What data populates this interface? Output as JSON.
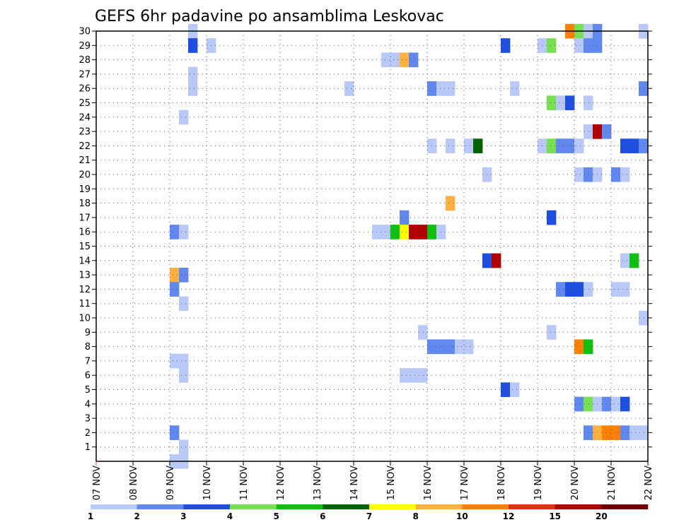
{
  "chart_data": {
    "type": "heatmap",
    "title": "GEFS 6hr padavine po ansamblima Leskovac",
    "x_tick_labels": [
      "07 NOV",
      "08 NOV",
      "09 NOV",
      "10 NOV",
      "11 NOV",
      "12 NOV",
      "13 NOV",
      "14 NOV",
      "15 NOV",
      "16 NOV",
      "17 NOV",
      "18 NOV",
      "19 NOV",
      "20 NOV",
      "21 NOV",
      "22 NOV"
    ],
    "y_tick_labels": [
      "1",
      "2",
      "3",
      "4",
      "5",
      "6",
      "7",
      "8",
      "9",
      "10",
      "11",
      "12",
      "13",
      "14",
      "15",
      "16",
      "17",
      "18",
      "19",
      "20",
      "21",
      "22",
      "23",
      "24",
      "25",
      "26",
      "27",
      "28",
      "29",
      "30"
    ],
    "y_range": [
      0,
      30
    ],
    "steps_per_day": 4,
    "grid": true,
    "legend": {
      "position": "bottom",
      "labels": [
        "1",
        "2",
        "3",
        "4",
        "5",
        "6",
        "7",
        "8",
        "10",
        "12",
        "15",
        "20"
      ],
      "colors": [
        "#b8c8f8",
        "#6088ee",
        "#1f4fe0",
        "#78e050",
        "#10c010",
        "#006400",
        "#ffff00",
        "#ffb040",
        "#ff8000",
        "#e03010",
        "#b00000",
        "#700000"
      ]
    },
    "cells": [
      {
        "member": 30,
        "step": 10,
        "value": 1.5
      },
      {
        "member": 30,
        "step": 51,
        "value": 11
      },
      {
        "member": 30,
        "step": 52,
        "value": 4.5
      },
      {
        "member": 30,
        "step": 53,
        "value": 1.5
      },
      {
        "member": 30,
        "step": 54,
        "value": 2.5
      },
      {
        "member": 30,
        "step": 59,
        "value": 1.5
      },
      {
        "member": 29,
        "step": 10,
        "value": 3.5
      },
      {
        "member": 29,
        "step": 12,
        "value": 1.5
      },
      {
        "member": 29,
        "step": 44,
        "value": 3.5
      },
      {
        "member": 29,
        "step": 48,
        "value": 1.5
      },
      {
        "member": 29,
        "step": 49,
        "value": 4.5
      },
      {
        "member": 29,
        "step": 52,
        "value": 1.5
      },
      {
        "member": 29,
        "step": 53,
        "value": 2.5
      },
      {
        "member": 29,
        "step": 54,
        "value": 2.5
      },
      {
        "member": 28,
        "step": 31,
        "value": 1.5
      },
      {
        "member": 28,
        "step": 32,
        "value": 1.5
      },
      {
        "member": 28,
        "step": 33,
        "value": 9
      },
      {
        "member": 28,
        "step": 34,
        "value": 2.5
      },
      {
        "member": 27,
        "step": 10,
        "value": 1.5
      },
      {
        "member": 26,
        "step": 10,
        "value": 1.5
      },
      {
        "member": 26,
        "step": 27,
        "value": 1.5
      },
      {
        "member": 26,
        "step": 36,
        "value": 2.5
      },
      {
        "member": 26,
        "step": 37,
        "value": 1.5
      },
      {
        "member": 26,
        "step": 38,
        "value": 1.5
      },
      {
        "member": 26,
        "step": 45,
        "value": 1.5
      },
      {
        "member": 26,
        "step": 59,
        "value": 2.5
      },
      {
        "member": 25,
        "step": 49,
        "value": 4.5
      },
      {
        "member": 25,
        "step": 50,
        "value": 1.5
      },
      {
        "member": 25,
        "step": 51,
        "value": 3.5
      },
      {
        "member": 25,
        "step": 53,
        "value": 1.5
      },
      {
        "member": 24,
        "step": 9,
        "value": 1.5
      },
      {
        "member": 23,
        "step": 53,
        "value": 1.5
      },
      {
        "member": 23,
        "step": 54,
        "value": 17
      },
      {
        "member": 23,
        "step": 55,
        "value": 2.5
      },
      {
        "member": 22,
        "step": 36,
        "value": 1.5
      },
      {
        "member": 22,
        "step": 38,
        "value": 1.5
      },
      {
        "member": 22,
        "step": 40,
        "value": 1.5
      },
      {
        "member": 22,
        "step": 41,
        "value": 6.5
      },
      {
        "member": 22,
        "step": 48,
        "value": 1.5
      },
      {
        "member": 22,
        "step": 49,
        "value": 4.5
      },
      {
        "member": 22,
        "step": 50,
        "value": 2.5
      },
      {
        "member": 22,
        "step": 51,
        "value": 2.5
      },
      {
        "member": 22,
        "step": 52,
        "value": 1.5
      },
      {
        "member": 22,
        "step": 57,
        "value": 3.5
      },
      {
        "member": 22,
        "step": 58,
        "value": 3.5
      },
      {
        "member": 22,
        "step": 59,
        "value": 2.5
      },
      {
        "member": 20,
        "step": 42,
        "value": 1.5
      },
      {
        "member": 20,
        "step": 52,
        "value": 1.5
      },
      {
        "member": 20,
        "step": 53,
        "value": 2.5
      },
      {
        "member": 20,
        "step": 54,
        "value": 1.5
      },
      {
        "member": 20,
        "step": 56,
        "value": 2.5
      },
      {
        "member": 20,
        "step": 57,
        "value": 1.5
      },
      {
        "member": 18,
        "step": 38,
        "value": 9
      },
      {
        "member": 17,
        "step": 33,
        "value": 2.5
      },
      {
        "member": 17,
        "step": 49,
        "value": 3.5
      },
      {
        "member": 16,
        "step": 8,
        "value": 2.5
      },
      {
        "member": 16,
        "step": 9,
        "value": 1.5
      },
      {
        "member": 16,
        "step": 30,
        "value": 1.5
      },
      {
        "member": 16,
        "step": 31,
        "value": 1.5
      },
      {
        "member": 16,
        "step": 32,
        "value": 5.5
      },
      {
        "member": 16,
        "step": 33,
        "value": 7.5
      },
      {
        "member": 16,
        "step": 34,
        "value": 17
      },
      {
        "member": 16,
        "step": 35,
        "value": 17
      },
      {
        "member": 16,
        "step": 36,
        "value": 5.5
      },
      {
        "member": 16,
        "step": 37,
        "value": 1.5
      },
      {
        "member": 14,
        "step": 42,
        "value": 3.5
      },
      {
        "member": 14,
        "step": 43,
        "value": 17
      },
      {
        "member": 14,
        "step": 57,
        "value": 1.5
      },
      {
        "member": 14,
        "step": 58,
        "value": 5.5
      },
      {
        "member": 13,
        "step": 8,
        "value": 9
      },
      {
        "member": 13,
        "step": 9,
        "value": 2.5
      },
      {
        "member": 12,
        "step": 8,
        "value": 2.5
      },
      {
        "member": 12,
        "step": 50,
        "value": 2.5
      },
      {
        "member": 12,
        "step": 51,
        "value": 3.5
      },
      {
        "member": 12,
        "step": 52,
        "value": 3.5
      },
      {
        "member": 12,
        "step": 53,
        "value": 1.5
      },
      {
        "member": 12,
        "step": 56,
        "value": 1.5
      },
      {
        "member": 12,
        "step": 57,
        "value": 1.5
      },
      {
        "member": 11,
        "step": 9,
        "value": 1.5
      },
      {
        "member": 10,
        "step": 59,
        "value": 1.5
      },
      {
        "member": 9,
        "step": 35,
        "value": 1.5
      },
      {
        "member": 9,
        "step": 49,
        "value": 1.5
      },
      {
        "member": 8,
        "step": 36,
        "value": 2.5
      },
      {
        "member": 8,
        "step": 37,
        "value": 2.5
      },
      {
        "member": 8,
        "step": 38,
        "value": 2.5
      },
      {
        "member": 8,
        "step": 39,
        "value": 1.5
      },
      {
        "member": 8,
        "step": 40,
        "value": 1.5
      },
      {
        "member": 8,
        "step": 52,
        "value": 11
      },
      {
        "member": 8,
        "step": 53,
        "value": 5.5
      },
      {
        "member": 7,
        "step": 8,
        "value": 1.5
      },
      {
        "member": 7,
        "step": 9,
        "value": 1.5
      },
      {
        "member": 6,
        "step": 9,
        "value": 1.5
      },
      {
        "member": 6,
        "step": 33,
        "value": 1.5
      },
      {
        "member": 6,
        "step": 34,
        "value": 1.5
      },
      {
        "member": 6,
        "step": 35,
        "value": 1.5
      },
      {
        "member": 5,
        "step": 44,
        "value": 3.5
      },
      {
        "member": 5,
        "step": 45,
        "value": 1.5
      },
      {
        "member": 4,
        "step": 52,
        "value": 2.5
      },
      {
        "member": 4,
        "step": 53,
        "value": 4.5
      },
      {
        "member": 4,
        "step": 54,
        "value": 1.5
      },
      {
        "member": 4,
        "step": 55,
        "value": 2.5
      },
      {
        "member": 4,
        "step": 56,
        "value": 1.5
      },
      {
        "member": 4,
        "step": 57,
        "value": 3.5
      },
      {
        "member": 2,
        "step": 8,
        "value": 2.5
      },
      {
        "member": 2,
        "step": 53,
        "value": 2.5
      },
      {
        "member": 2,
        "step": 54,
        "value": 9
      },
      {
        "member": 2,
        "step": 55,
        "value": 11
      },
      {
        "member": 2,
        "step": 56,
        "value": 11
      },
      {
        "member": 2,
        "step": 57,
        "value": 2.5
      },
      {
        "member": 2,
        "step": 58,
        "value": 1.5
      },
      {
        "member": 2,
        "step": 59,
        "value": 1.5
      },
      {
        "member": 1,
        "step": 9,
        "value": 1.5
      },
      {
        "member": 0,
        "step": 8,
        "value": 1.5
      },
      {
        "member": 0,
        "step": 9,
        "value": 1.5
      }
    ]
  }
}
